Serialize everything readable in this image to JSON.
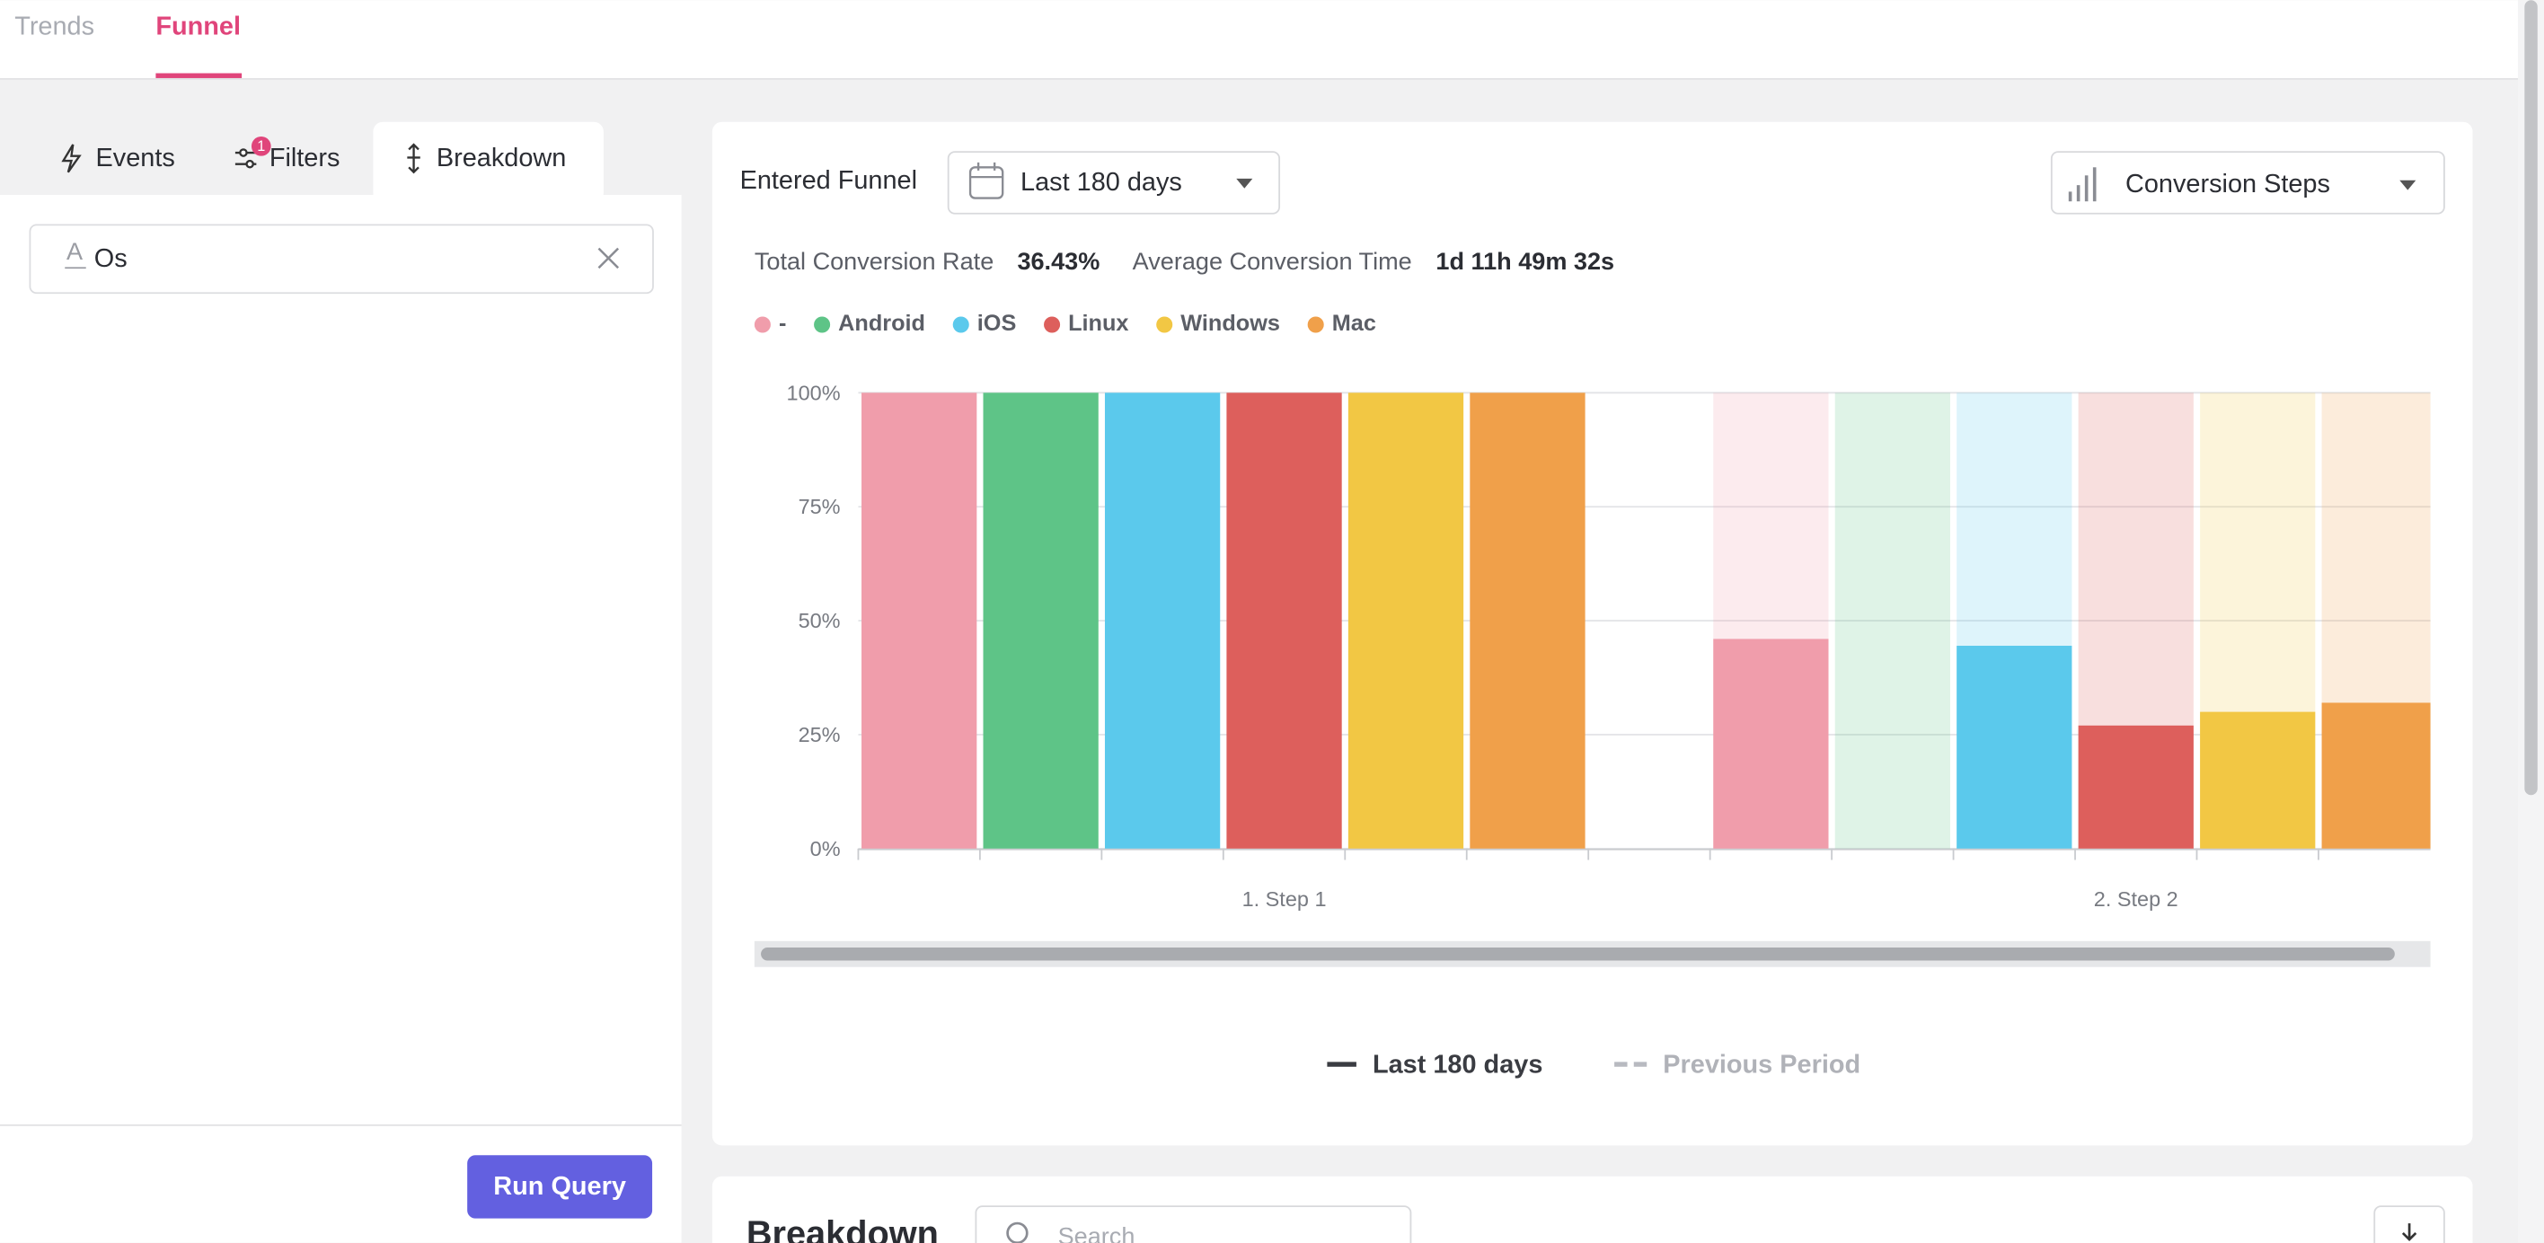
{
  "nav": {
    "tabs": [
      "Trends",
      "Funnel"
    ]
  },
  "sidebar": {
    "tabs": [
      "Events",
      "Filters",
      "Breakdown"
    ],
    "filters_badge": "1",
    "breakdown_field": "Os",
    "run_button": "Run Query"
  },
  "toolbar": {
    "label": "Entered Funnel",
    "date_range": "Last 180 days",
    "view": "Conversion Steps"
  },
  "summary": {
    "conversion_rate_label": "Total Conversion Rate",
    "conversion_rate": "36.43%",
    "time_label": "Average Conversion Time",
    "time": "1d 11h 49m 32s"
  },
  "chart_data": {
    "type": "bar",
    "categories": [
      "1. Step 1",
      "2. Step 2"
    ],
    "series": [
      {
        "name": "-",
        "color": "#f09dab",
        "values": [
          100,
          46
        ]
      },
      {
        "name": "Android",
        "color": "#5ec487",
        "values": [
          100,
          0
        ]
      },
      {
        "name": "iOS",
        "color": "#5bc9ec",
        "values": [
          100,
          44.5
        ]
      },
      {
        "name": "Linux",
        "color": "#dd5f5c",
        "values": [
          100,
          27
        ]
      },
      {
        "name": "Windows",
        "color": "#f2c744",
        "values": [
          100,
          30
        ]
      },
      {
        "name": "Mac",
        "color": "#f0a04a",
        "values": [
          100,
          32
        ]
      }
    ],
    "ylim": [
      0,
      100
    ],
    "yticks": [
      {
        "value": 0,
        "label": "0%"
      },
      {
        "value": 25,
        "label": "25%"
      },
      {
        "value": 50,
        "label": "50%"
      },
      {
        "value": 75,
        "label": "75%"
      },
      {
        "value": 100,
        "label": "100%"
      }
    ],
    "grid": true
  },
  "period_legend": [
    "Last 180 days",
    "Previous Period"
  ],
  "breakdown": {
    "title": "Breakdown",
    "search_placeholder": "Search"
  }
}
